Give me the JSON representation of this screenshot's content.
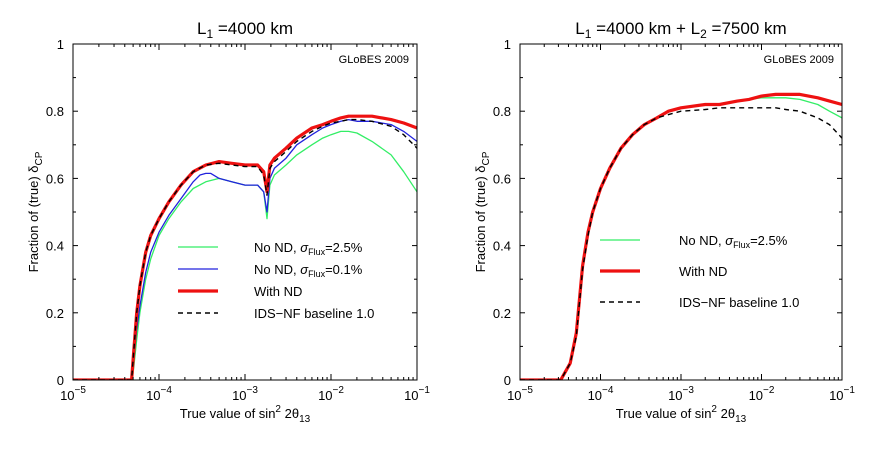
{
  "chart_data": [
    {
      "type": "line",
      "title": {
        "main": "L",
        "sub": "1",
        "rest": " =4000 km"
      },
      "watermark": "GLoBES 2009",
      "xlabel": {
        "main": "True value of sin",
        "sup": "2",
        "mid": " 2θ",
        "sub": "13"
      },
      "ylabel": {
        "main": "Fraction of (true) δ",
        "sub": "CP"
      },
      "xscale": "log",
      "xlim": [
        1e-05,
        0.1
      ],
      "ylim": [
        0,
        1
      ],
      "xticks": [
        {
          "value": 1e-05,
          "base": "10",
          "exp": "−5"
        },
        {
          "value": 0.0001,
          "base": "10",
          "exp": "−4"
        },
        {
          "value": 0.001,
          "base": "10",
          "exp": "−3"
        },
        {
          "value": 0.01,
          "base": "10",
          "exp": "−2"
        },
        {
          "value": 0.1,
          "base": "10",
          "exp": "−1"
        }
      ],
      "yticks": [
        "0",
        "0.2",
        "0.4",
        "0.6",
        "0.8",
        "1"
      ],
      "grid": false,
      "legend_position": "lower-right",
      "legend": [
        {
          "series": 0,
          "text": "No ND, ",
          "sigma": "σ",
          "sigma_sub": "Flux",
          "value": "=2.5%"
        },
        {
          "series": 1,
          "text": "No ND, ",
          "sigma": "σ",
          "sigma_sub": "Flux",
          "value": "=0.1%"
        },
        {
          "series": 2,
          "text": "With ND"
        },
        {
          "series": 3,
          "text": "IDS−NF baseline 1.0"
        }
      ],
      "series": [
        {
          "name": "No ND, σFlux=2.5%",
          "color": "#33ee66",
          "width": 1.3,
          "dash": "",
          "x": [
            1e-05,
            3.55e-05,
            4.8e-05,
            5e-05,
            5.5e-05,
            6e-05,
            7e-05,
            8e-05,
            0.0001,
            0.00013,
            0.00018,
            0.00025,
            0.00035,
            0.0005,
            0.0007,
            0.001,
            0.0014,
            0.00165,
            0.0018,
            0.00195,
            0.0022,
            0.003,
            0.004,
            0.006,
            0.008,
            0.01,
            0.013,
            0.016,
            0.02,
            0.03,
            0.05,
            0.07,
            0.1
          ],
          "y": [
            0,
            0,
            0,
            0.02,
            0.12,
            0.2,
            0.3,
            0.36,
            0.43,
            0.48,
            0.53,
            0.57,
            0.59,
            0.6,
            0.59,
            0.58,
            0.58,
            0.56,
            0.48,
            0.58,
            0.61,
            0.64,
            0.67,
            0.7,
            0.72,
            0.73,
            0.74,
            0.74,
            0.735,
            0.71,
            0.67,
            0.62,
            0.56
          ]
        },
        {
          "name": "No ND, σFlux=0.1%",
          "color": "#2222dd",
          "width": 1.3,
          "dash": "",
          "x": [
            1e-05,
            3.55e-05,
            4.8e-05,
            5e-05,
            5.5e-05,
            6e-05,
            7e-05,
            8e-05,
            0.0001,
            0.00013,
            0.00018,
            0.00025,
            0.0003,
            0.00035,
            0.0004,
            0.0005,
            0.0007,
            0.001,
            0.0014,
            0.00165,
            0.0018,
            0.00195,
            0.0022,
            0.003,
            0.004,
            0.006,
            0.008,
            0.01,
            0.013,
            0.016,
            0.02,
            0.03,
            0.05,
            0.07,
            0.1
          ],
          "y": [
            0,
            0,
            0,
            0.04,
            0.15,
            0.22,
            0.32,
            0.38,
            0.44,
            0.49,
            0.54,
            0.59,
            0.61,
            0.615,
            0.615,
            0.6,
            0.59,
            0.58,
            0.58,
            0.56,
            0.5,
            0.6,
            0.63,
            0.66,
            0.7,
            0.73,
            0.75,
            0.76,
            0.77,
            0.775,
            0.77,
            0.77,
            0.76,
            0.74,
            0.71
          ]
        },
        {
          "name": "With ND",
          "color": "#ee1111",
          "width": 3.2,
          "dash": "",
          "x": [
            1e-05,
            3.55e-05,
            4.8e-05,
            5e-05,
            5.5e-05,
            6e-05,
            7e-05,
            8e-05,
            0.0001,
            0.00013,
            0.00018,
            0.00025,
            0.00035,
            0.0005,
            0.0007,
            0.001,
            0.0014,
            0.00165,
            0.0018,
            0.00195,
            0.0022,
            0.003,
            0.004,
            0.006,
            0.008,
            0.01,
            0.013,
            0.016,
            0.02,
            0.03,
            0.05,
            0.07,
            0.1
          ],
          "y": [
            0,
            0,
            0,
            0.06,
            0.2,
            0.28,
            0.38,
            0.43,
            0.48,
            0.53,
            0.58,
            0.62,
            0.64,
            0.65,
            0.645,
            0.64,
            0.64,
            0.62,
            0.56,
            0.64,
            0.66,
            0.69,
            0.72,
            0.75,
            0.76,
            0.77,
            0.78,
            0.785,
            0.785,
            0.785,
            0.775,
            0.765,
            0.75
          ]
        },
        {
          "name": "IDS−NF baseline 1.0",
          "color": "#000000",
          "width": 1.4,
          "dash": "5,4",
          "x": [
            1e-05,
            3.55e-05,
            4.8e-05,
            5e-05,
            5.5e-05,
            6e-05,
            7e-05,
            8e-05,
            0.0001,
            0.00013,
            0.00018,
            0.00025,
            0.00035,
            0.0005,
            0.0007,
            0.001,
            0.0014,
            0.00165,
            0.0018,
            0.00195,
            0.0022,
            0.003,
            0.004,
            0.006,
            0.008,
            0.01,
            0.013,
            0.016,
            0.02,
            0.03,
            0.05,
            0.07,
            0.1
          ],
          "y": [
            0,
            0,
            0,
            0.06,
            0.2,
            0.28,
            0.38,
            0.43,
            0.48,
            0.53,
            0.58,
            0.62,
            0.64,
            0.645,
            0.64,
            0.635,
            0.635,
            0.61,
            0.55,
            0.63,
            0.65,
            0.68,
            0.71,
            0.74,
            0.755,
            0.765,
            0.77,
            0.775,
            0.775,
            0.77,
            0.755,
            0.73,
            0.69
          ]
        }
      ]
    },
    {
      "type": "line",
      "title": {
        "main": "L",
        "sub": "1",
        "rest": " =4000 km + L",
        "sub2": "2",
        "rest2": " =7500 km"
      },
      "watermark": "GLoBES 2009",
      "xlabel": {
        "main": "True value of sin",
        "sup": "2",
        "mid": " 2θ",
        "sub": "13"
      },
      "ylabel": {
        "main": "Fraction of (true) δ",
        "sub": "CP"
      },
      "xscale": "log",
      "xlim": [
        1e-05,
        0.1
      ],
      "ylim": [
        0,
        1
      ],
      "xticks": [
        {
          "value": 1e-05,
          "base": "10",
          "exp": "−5"
        },
        {
          "value": 0.0001,
          "base": "10",
          "exp": "−4"
        },
        {
          "value": 0.001,
          "base": "10",
          "exp": "−3"
        },
        {
          "value": 0.01,
          "base": "10",
          "exp": "−2"
        },
        {
          "value": 0.1,
          "base": "10",
          "exp": "−1"
        }
      ],
      "yticks": [
        "0",
        "0.2",
        "0.4",
        "0.6",
        "0.8",
        "1"
      ],
      "grid": false,
      "legend_position": "lower-right",
      "legend": [
        {
          "series": 0,
          "text": "No ND, ",
          "sigma": "σ",
          "sigma_sub": "Flux",
          "value": "=2.5%"
        },
        {
          "series": 1,
          "text": "With ND"
        },
        {
          "series": 2,
          "text": "IDS−NF baseline 1.0"
        }
      ],
      "series": [
        {
          "name": "No ND, σFlux=2.5%",
          "color": "#33ee66",
          "width": 1.3,
          "dash": "",
          "x": [
            1e-05,
            3.2e-05,
            4.2e-05,
            5e-05,
            6e-05,
            7e-05,
            8e-05,
            0.0001,
            0.00013,
            0.00018,
            0.00025,
            0.00035,
            0.0005,
            0.0007,
            0.001,
            0.002,
            0.003,
            0.005,
            0.007,
            0.01,
            0.015,
            0.02,
            0.03,
            0.05,
            0.07,
            0.1
          ],
          "y": [
            0,
            0,
            0.05,
            0.13,
            0.33,
            0.43,
            0.5,
            0.57,
            0.63,
            0.69,
            0.73,
            0.76,
            0.78,
            0.8,
            0.81,
            0.82,
            0.82,
            0.83,
            0.835,
            0.84,
            0.84,
            0.84,
            0.835,
            0.82,
            0.8,
            0.78
          ]
        },
        {
          "name": "With ND",
          "color": "#ee1111",
          "width": 3.2,
          "dash": "",
          "x": [
            1e-05,
            3.2e-05,
            4.2e-05,
            5e-05,
            6e-05,
            7e-05,
            8e-05,
            0.0001,
            0.00013,
            0.00018,
            0.00025,
            0.00035,
            0.0005,
            0.0007,
            0.001,
            0.002,
            0.003,
            0.005,
            0.007,
            0.01,
            0.015,
            0.02,
            0.03,
            0.05,
            0.07,
            0.1
          ],
          "y": [
            0,
            0,
            0.05,
            0.14,
            0.34,
            0.44,
            0.5,
            0.57,
            0.63,
            0.69,
            0.73,
            0.76,
            0.78,
            0.8,
            0.81,
            0.82,
            0.82,
            0.83,
            0.835,
            0.845,
            0.85,
            0.85,
            0.85,
            0.84,
            0.83,
            0.82
          ]
        },
        {
          "name": "IDS−NF baseline 1.0",
          "color": "#000000",
          "width": 1.4,
          "dash": "5,4",
          "x": [
            1e-05,
            3.2e-05,
            4.2e-05,
            5e-05,
            6e-05,
            7e-05,
            8e-05,
            0.0001,
            0.00013,
            0.00018,
            0.00025,
            0.00035,
            0.0005,
            0.0007,
            0.001,
            0.002,
            0.003,
            0.005,
            0.007,
            0.01,
            0.015,
            0.02,
            0.03,
            0.05,
            0.07,
            0.1
          ],
          "y": [
            0,
            0,
            0.05,
            0.13,
            0.33,
            0.43,
            0.5,
            0.57,
            0.63,
            0.69,
            0.73,
            0.76,
            0.78,
            0.79,
            0.8,
            0.805,
            0.81,
            0.81,
            0.81,
            0.81,
            0.81,
            0.805,
            0.8,
            0.78,
            0.76,
            0.72
          ]
        }
      ]
    }
  ]
}
